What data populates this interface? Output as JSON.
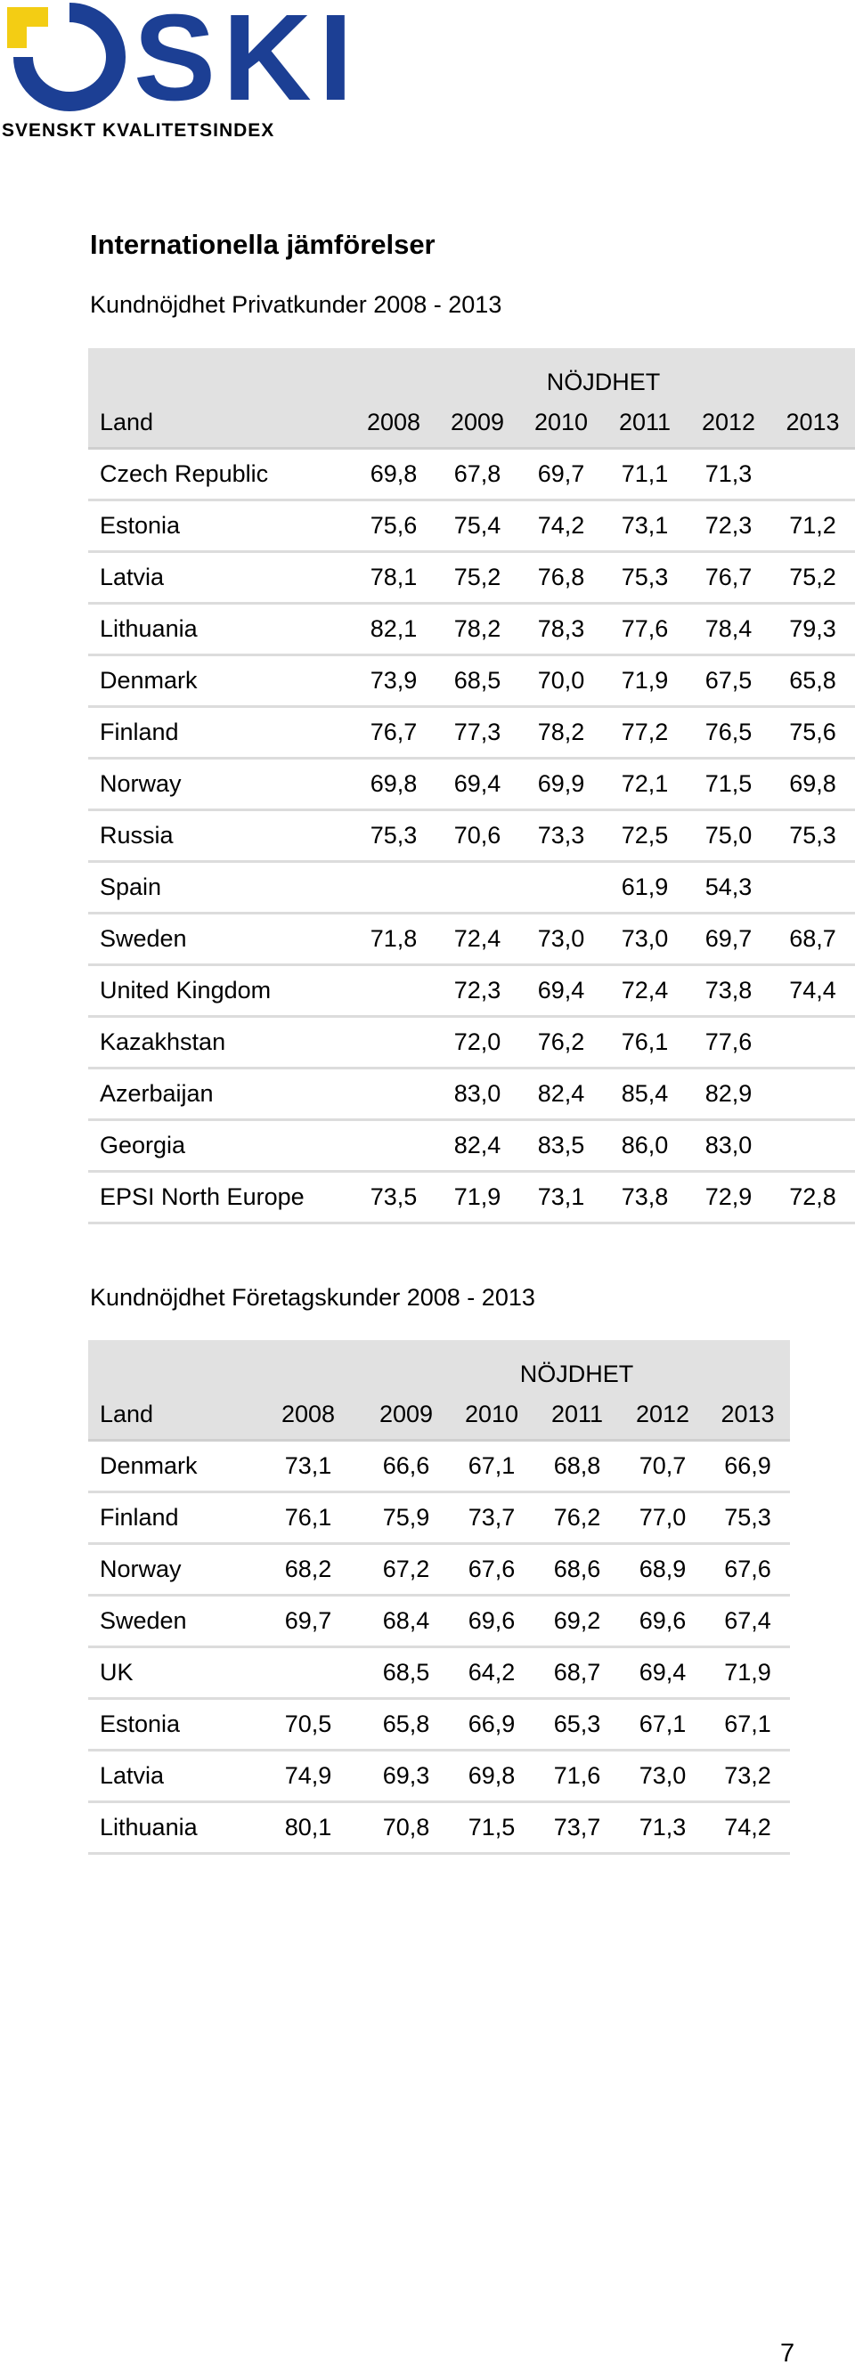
{
  "logo": {
    "wordmark": "SKI",
    "subtitle": "SVENSKT KVALITETSINDEX",
    "brand_yellow": "#f3cd14",
    "brand_blue": "#1c3f94"
  },
  "heading": "Internationella jämförelser",
  "private": {
    "title": "Kundnöjdhet Privatkunder 2008 - 2013",
    "group_label": "NÖJDHET",
    "land_label": "Land",
    "years": [
      "2008",
      "2009",
      "2010",
      "2011",
      "2012",
      "2013"
    ],
    "rows": [
      [
        "Czech Republic",
        "69,8",
        "67,8",
        "69,7",
        "71,1",
        "71,3",
        ""
      ],
      [
        "Estonia",
        "75,6",
        "75,4",
        "74,2",
        "73,1",
        "72,3",
        "71,2"
      ],
      [
        "Latvia",
        "78,1",
        "75,2",
        "76,8",
        "75,3",
        "76,7",
        "75,2"
      ],
      [
        "Lithuania",
        "82,1",
        "78,2",
        "78,3",
        "77,6",
        "78,4",
        "79,3"
      ],
      [
        "Denmark",
        "73,9",
        "68,5",
        "70,0",
        "71,9",
        "67,5",
        "65,8"
      ],
      [
        "Finland",
        "76,7",
        "77,3",
        "78,2",
        "77,2",
        "76,5",
        "75,6"
      ],
      [
        "Norway",
        "69,8",
        "69,4",
        "69,9",
        "72,1",
        "71,5",
        "69,8"
      ],
      [
        "Russia",
        "75,3",
        "70,6",
        "73,3",
        "72,5",
        "75,0",
        "75,3"
      ],
      [
        "Spain",
        "",
        "",
        "",
        "61,9",
        "54,3",
        ""
      ],
      [
        "Sweden",
        "71,8",
        "72,4",
        "73,0",
        "73,0",
        "69,7",
        "68,7"
      ],
      [
        "United Kingdom",
        "",
        "72,3",
        "69,4",
        "72,4",
        "73,8",
        "74,4"
      ],
      [
        "Kazakhstan",
        "",
        "72,0",
        "76,2",
        "76,1",
        "77,6",
        ""
      ],
      [
        "Azerbaijan",
        "",
        "83,0",
        "82,4",
        "85,4",
        "82,9",
        ""
      ],
      [
        "Georgia",
        "",
        "82,4",
        "83,5",
        "86,0",
        "83,0",
        ""
      ],
      [
        "EPSI North Europe",
        "73,5",
        "71,9",
        "73,1",
        "73,8",
        "72,9",
        "72,8"
      ]
    ]
  },
  "business": {
    "title": "Kundnöjdhet Företagskunder 2008 - 2013",
    "group_label": "NÖJDHET",
    "land_label": "Land",
    "years": [
      "2008",
      "2009",
      "2010",
      "2011",
      "2012",
      "2013"
    ],
    "rows": [
      [
        "Denmark",
        "73,1",
        "66,6",
        "67,1",
        "68,8",
        "70,7",
        "66,9"
      ],
      [
        "Finland",
        "76,1",
        "75,9",
        "73,7",
        "76,2",
        "77,0",
        "75,3"
      ],
      [
        "Norway",
        "68,2",
        "67,2",
        "67,6",
        "68,6",
        "68,9",
        "67,6"
      ],
      [
        "Sweden",
        "69,7",
        "68,4",
        "69,6",
        "69,2",
        "69,6",
        "67,4"
      ],
      [
        "UK",
        "",
        "68,5",
        "64,2",
        "68,7",
        "69,4",
        "71,9"
      ],
      [
        "Estonia",
        "70,5",
        "65,8",
        "66,9",
        "65,3",
        "67,1",
        "67,1"
      ],
      [
        "Latvia",
        "74,9",
        "69,3",
        "69,8",
        "71,6",
        "73,0",
        "73,2"
      ],
      [
        "Lithuania",
        "80,1",
        "70,8",
        "71,5",
        "73,7",
        "71,3",
        "74,2"
      ]
    ]
  },
  "page_number": "7"
}
